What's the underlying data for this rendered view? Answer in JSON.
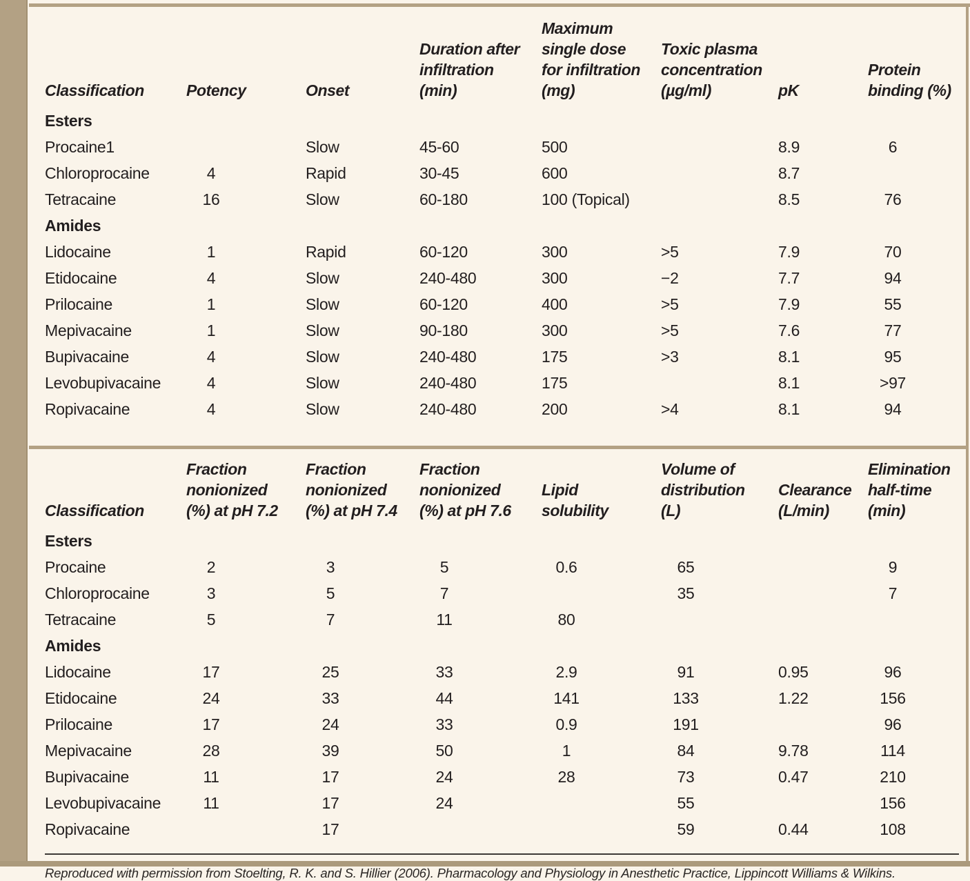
{
  "colors": {
    "margin_band": "#b3a184",
    "page_background": "#faf4ea",
    "text": "#221e1f",
    "footer_rule": "#3c3835"
  },
  "tables": [
    {
      "columns": [
        "Classification",
        "Potency",
        "Onset",
        "Duration after\ninfiltration\n(min)",
        "Maximum\nsingle dose\nfor infiltration\n(mg)",
        "Toxic plasma\nconcentration\n(µg/ml)",
        "pK",
        "Protein\nbinding (%)"
      ],
      "sections": [
        {
          "label": "Esters",
          "rows": [
            [
              "Procaine1",
              "",
              "Slow",
              "45-60",
              "500",
              "",
              "8.9",
              "6"
            ],
            [
              "Chloroprocaine",
              "4",
              "Rapid",
              "30-45",
              "600",
              "",
              "8.7",
              ""
            ],
            [
              "Tetracaine",
              "16",
              "Slow",
              "60-180",
              "100 (Topical)",
              "",
              "8.5",
              "76"
            ]
          ]
        },
        {
          "label": "Amides",
          "rows": [
            [
              "Lidocaine",
              "1",
              "Rapid",
              "60-120",
              "300",
              ">5",
              "7.9",
              "70"
            ],
            [
              "Etidocaine",
              "4",
              "Slow",
              "240-480",
              "300",
              "−2",
              "7.7",
              "94"
            ],
            [
              "Prilocaine",
              "1",
              "Slow",
              "60-120",
              "400",
              ">5",
              "7.9",
              "55"
            ],
            [
              "Mepivacaine",
              "1",
              "Slow",
              "90-180",
              "300",
              ">5",
              "7.6",
              "77"
            ],
            [
              "Bupivacaine",
              "4",
              "Slow",
              "240-480",
              "175",
              ">3",
              "8.1",
              "95"
            ],
            [
              "Levobupivacaine",
              "4",
              "Slow",
              "240-480",
              "175",
              "",
              "8.1",
              ">97"
            ],
            [
              "Ropivacaine",
              "4",
              "Slow",
              "240-480",
              "200",
              ">4",
              "8.1",
              "94"
            ]
          ]
        }
      ]
    },
    {
      "columns": [
        "Classification",
        "Fraction\nnonionized\n(%) at pH 7.2",
        "Fraction\nnonionized\n(%) at pH 7.4",
        "Fraction\nnonionized\n(%) at pH 7.6",
        "Lipid\nsolubility",
        "Volume of\ndistribution\n(L)",
        "Clearance\n(L/min)",
        "Elimination\nhalf-time\n(min)"
      ],
      "sections": [
        {
          "label": "Esters",
          "rows": [
            [
              "Procaine",
              "2",
              "3",
              "5",
              "0.6",
              "65",
              "",
              "9"
            ],
            [
              "Chloroprocaine",
              "3",
              "5",
              "7",
              "",
              "35",
              "",
              "7"
            ],
            [
              "Tetracaine",
              "5",
              "7",
              "11",
              "80",
              "",
              "",
              ""
            ]
          ]
        },
        {
          "label": "Amides",
          "rows": [
            [
              "Lidocaine",
              "17",
              "25",
              "33",
              "2.9",
              "91",
              "0.95",
              "96"
            ],
            [
              "Etidocaine",
              "24",
              "33",
              "44",
              "141",
              "133",
              "1.22",
              "156"
            ],
            [
              "Prilocaine",
              "17",
              "24",
              "33",
              "0.9",
              "191",
              "",
              "96"
            ],
            [
              "Mepivacaine",
              "28",
              "39",
              "50",
              "1",
              "84",
              "9.78",
              "114"
            ],
            [
              "Bupivacaine",
              "11",
              "17",
              "24",
              "28",
              "73",
              "0.47",
              "210"
            ],
            [
              "Levobupivacaine",
              "11",
              "17",
              "24",
              "",
              "55",
              "",
              "156"
            ],
            [
              "Ropivacaine",
              "",
              "17",
              "",
              "",
              "59",
              "0.44",
              "108"
            ]
          ]
        }
      ]
    }
  ],
  "footer": "Reproduced with permission from Stoelting, R. K. and S. Hillier (2006). Pharmacology and Physiology in Anesthetic Practice, Lippincott Williams & Wilkins."
}
